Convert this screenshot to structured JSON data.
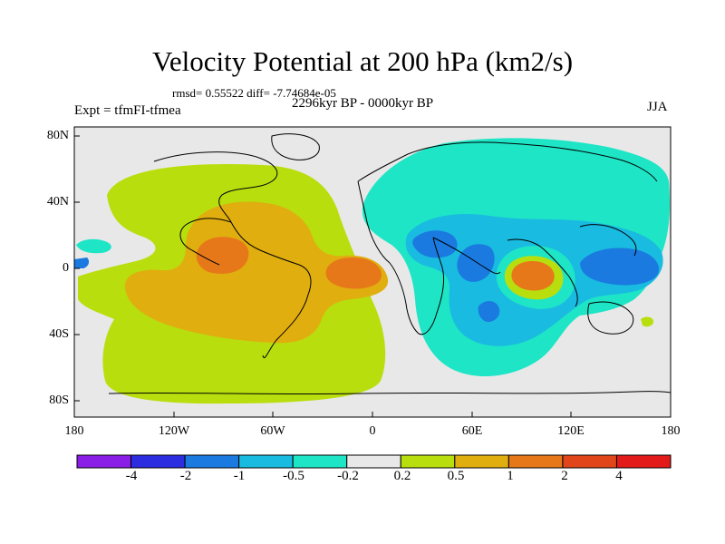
{
  "title": "Velocity Potential at 200 hPa (km2/s)",
  "stats": "rmsd= 0.55522 diff= -7.74684e-05",
  "period": "2296kyr BP - 0000kyr BP",
  "experiment": "Expt = tfmFI-tfmea",
  "season": "JJA",
  "lat_ticks": [
    "80N",
    "40N",
    "0",
    "40S",
    "80S"
  ],
  "lon_ticks": [
    "180",
    "120W",
    "60W",
    "0",
    "60E",
    "120E",
    "180"
  ],
  "colorbar": {
    "labels": [
      "-4",
      "-2",
      "-1",
      "-0.5",
      "-0.2",
      "0.2",
      "0.5",
      "1",
      "2",
      "4"
    ],
    "colors": [
      "#8a1ee6",
      "#2c2ce0",
      "#1a7ae0",
      "#19bbe0",
      "#1ee5c6",
      "#e8e8e8",
      "#b8de0e",
      "#e0ae0e",
      "#e6781a",
      "#e0461a",
      "#e21a1a"
    ]
  },
  "map_colors": {
    "background": "#e8e8e8",
    "pos_weak": "#b8de0e",
    "pos_mid": "#e0ae0e",
    "pos_strong": "#e6781a",
    "neg_weak": "#1ee5c6",
    "neg_mid": "#19bbe0",
    "neg_strong": "#1a7ae0"
  }
}
